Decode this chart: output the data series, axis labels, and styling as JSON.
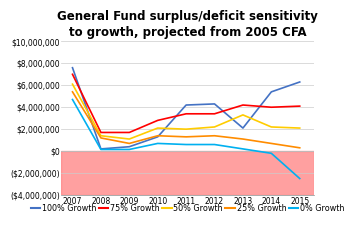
{
  "title": "General Fund surplus/deficit sensitivity\nto growth, projected from 2005 CFA",
  "years": [
    2007,
    2008,
    2009,
    2010,
    2011,
    2012,
    2013,
    2014,
    2015
  ],
  "series": {
    "100% Growth": {
      "color": "#4472C4",
      "values": [
        7600000,
        200000,
        400000,
        1300000,
        4200000,
        4300000,
        2100000,
        5400000,
        6300000
      ]
    },
    "75% Growth": {
      "color": "#FF0000",
      "values": [
        7000000,
        1700000,
        1700000,
        2800000,
        3400000,
        3400000,
        4200000,
        4000000,
        4100000
      ]
    },
    "50% Growth": {
      "color": "#FFCC00",
      "values": [
        6100000,
        1400000,
        1100000,
        2100000,
        2000000,
        2200000,
        3300000,
        2200000,
        2100000
      ]
    },
    "25% Growth": {
      "color": "#FF8C00",
      "values": [
        5400000,
        1200000,
        700000,
        1400000,
        1300000,
        1400000,
        1100000,
        700000,
        300000
      ]
    },
    "0% Growth": {
      "color": "#00B0F0",
      "values": [
        4700000,
        150000,
        150000,
        700000,
        600000,
        600000,
        200000,
        -200000,
        -2500000
      ]
    }
  },
  "ylim": [
    -4000000,
    10000000
  ],
  "yticks": [
    -4000000,
    -2000000,
    0,
    2000000,
    4000000,
    6000000,
    8000000,
    10000000
  ],
  "ytick_labels": [
    "($4,000,000)",
    "($2,000,000)",
    "$0",
    "$2,000,000",
    "$4,000,000",
    "$6,000,000",
    "$8,000,000",
    "$10,000,000"
  ],
  "deficit_fill_color": "#FF8080",
  "deficit_fill_alpha": 0.75,
  "legend_order": [
    "100% Growth",
    "75% Growth",
    "50% Growth",
    "25% Growth",
    "0% Growth"
  ],
  "line_width": 1.2,
  "title_fontsize": 8.5,
  "legend_fontsize": 5.8,
  "tick_fontsize": 5.5
}
